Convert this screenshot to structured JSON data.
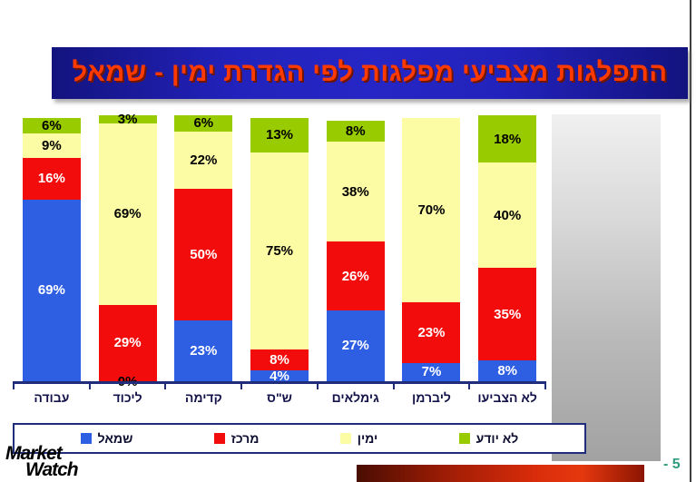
{
  "slide": {
    "title": "התפלגות מצביעי מפלגות לפי  הגדרת ימין - שמאל",
    "title_text_color": "#ff3a00",
    "title_bg_color": "#2222bb"
  },
  "chart_data": {
    "type": "bar",
    "stacked": true,
    "title": "התפלגות מצביעי מפלגות לפי  הגדרת ימין - שמאל",
    "categories": [
      "עבודה",
      "ליכוד",
      "קדימה",
      "ש\"ס",
      "גימלאים",
      "ליברמן",
      "לא הצביעו"
    ],
    "series": [
      {
        "key": "left",
        "name": "שמאל",
        "color": "#2e5fe3",
        "label_color": "#ffffff",
        "values": [
          69,
          0,
          23,
          4,
          27,
          7,
          8
        ],
        "labels": [
          "69%",
          "0%",
          "23%",
          "4%",
          "27%",
          "7%",
          "8%"
        ]
      },
      {
        "key": "center",
        "name": "מרכז",
        "color": "#f20c0c",
        "label_color": "#ffffff",
        "values": [
          16,
          29,
          50,
          8,
          26,
          23,
          35
        ],
        "labels": [
          "16%",
          "29%",
          "50%",
          "8%",
          "26%",
          "23%",
          "35%"
        ]
      },
      {
        "key": "right",
        "name": "ימין",
        "color": "#fcfca5",
        "label_color": "#000000",
        "values": [
          9,
          69,
          22,
          75,
          38,
          70,
          40
        ],
        "labels": [
          "9%",
          "69%",
          "22%",
          "75%",
          "38%",
          "70%",
          "40%"
        ]
      },
      {
        "key": "dont-know",
        "name": "לא יודע",
        "color": "#99cc00",
        "label_color": "#000000",
        "values": [
          6,
          3,
          6,
          13,
          8,
          0,
          18
        ],
        "labels": [
          "6%",
          "3%",
          "6%",
          "13%",
          "8%",
          "",
          "18%"
        ]
      }
    ],
    "zero_label_color": "#000000",
    "ylim": [
      0,
      100
    ],
    "value_suffix": "%",
    "grid": false,
    "legend_position": "bottom"
  },
  "footer": {
    "logo_line1": "Market",
    "logo_line2": "Watch",
    "page_number": "- 5"
  }
}
